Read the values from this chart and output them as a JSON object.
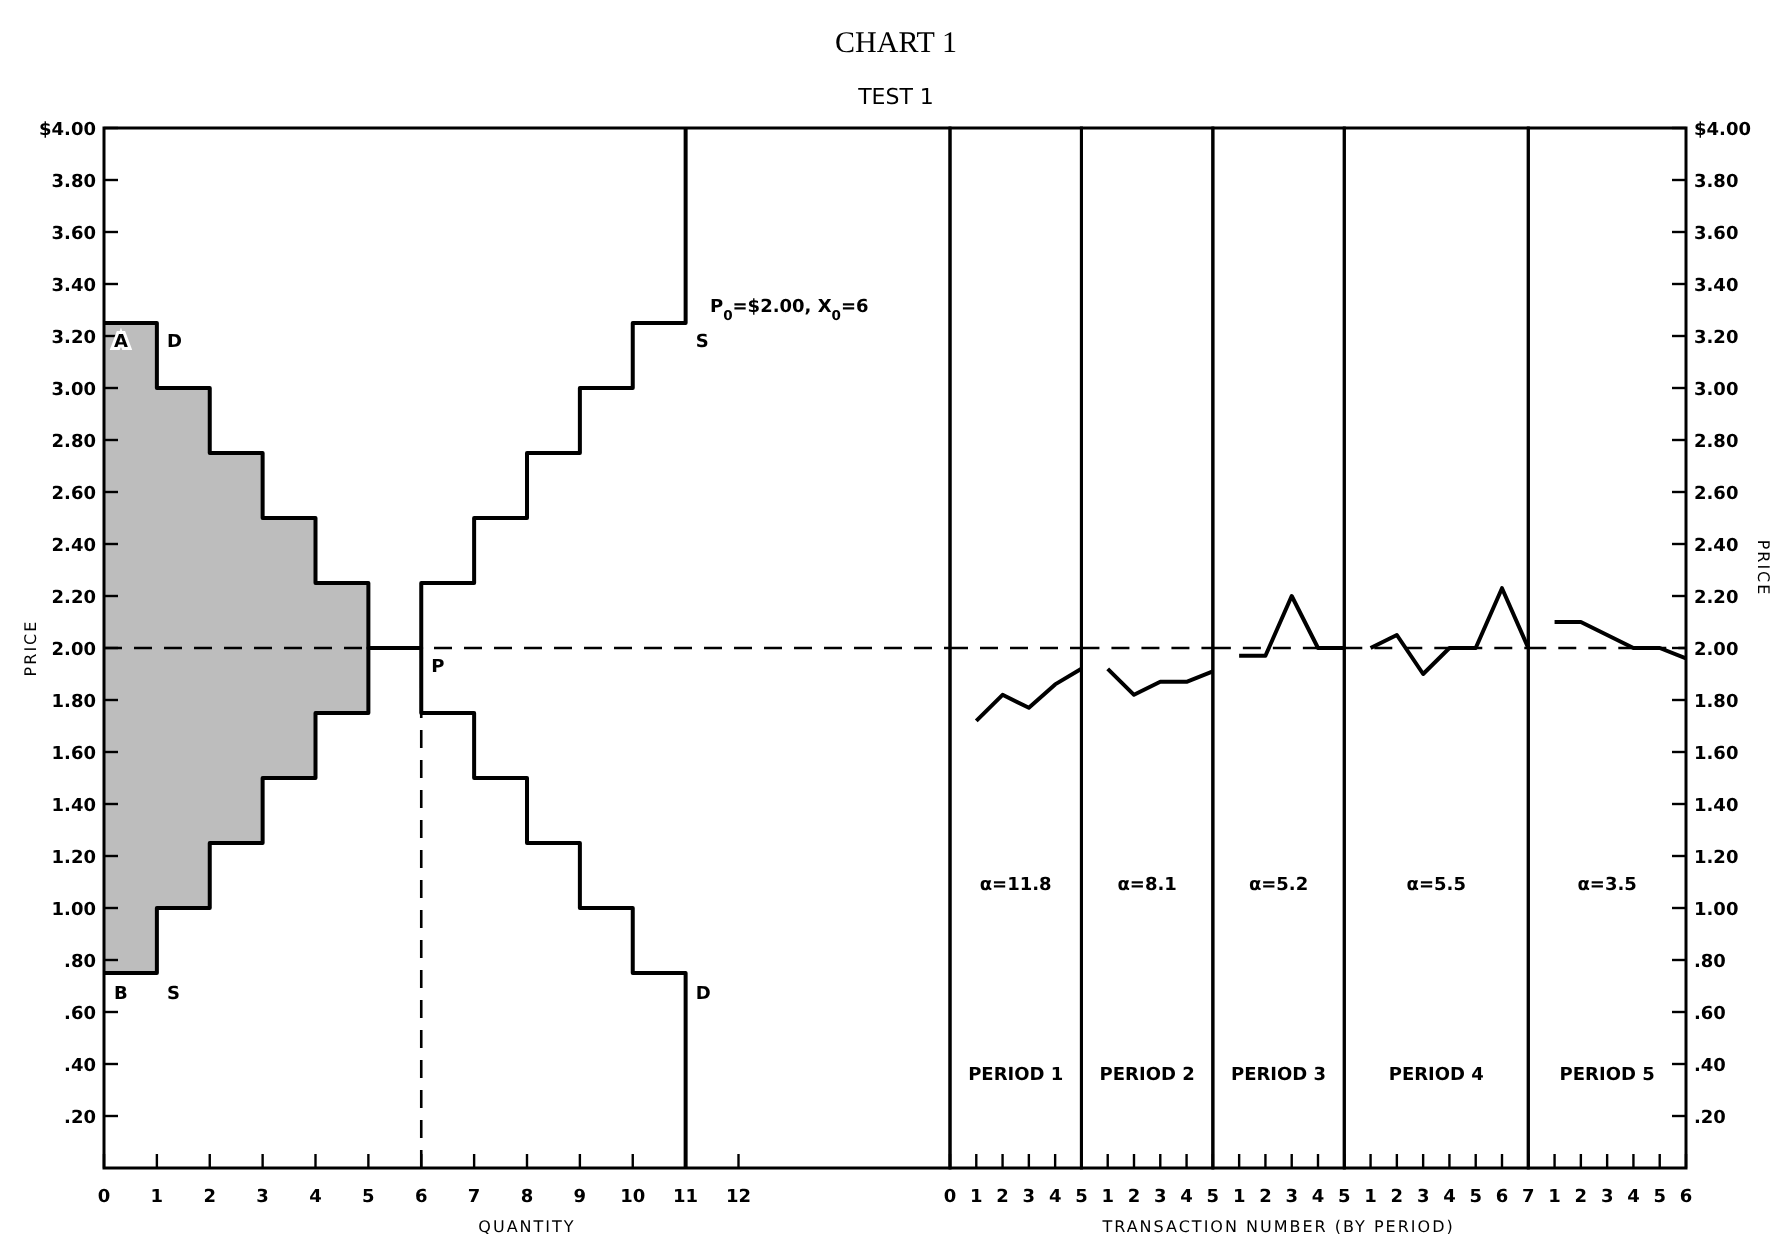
{
  "chart_data": [
    {
      "type": "step",
      "title": "CHART 1",
      "subtitle": "TEST 1",
      "xlabel": "QUANTITY",
      "ylabel": "PRICE",
      "xlim": [
        0,
        16
      ],
      "ylim": [
        0,
        4
      ],
      "xticks": [
        0,
        1,
        2,
        3,
        4,
        5,
        6,
        7,
        8,
        9,
        10,
        11,
        12
      ],
      "yticks": [
        {
          "value": 0.2,
          "label": ".20"
        },
        {
          "value": 0.4,
          "label": ".40"
        },
        {
          "value": 0.6,
          "label": ".60"
        },
        {
          "value": 0.8,
          "label": ".80"
        },
        {
          "value": 1,
          "label": "1.00"
        },
        {
          "value": 1.2,
          "label": "1.20"
        },
        {
          "value": 1.4,
          "label": "1.40"
        },
        {
          "value": 1.6,
          "label": "1.60"
        },
        {
          "value": 1.8,
          "label": "1.80"
        },
        {
          "value": 2,
          "label": "2.00"
        },
        {
          "value": 2.2,
          "label": "2.20"
        },
        {
          "value": 2.4,
          "label": "2.40"
        },
        {
          "value": 2.6,
          "label": "2.60"
        },
        {
          "value": 2.8,
          "label": "2.80"
        },
        {
          "value": 3,
          "label": "3.00"
        },
        {
          "value": 3.2,
          "label": "3.20"
        },
        {
          "value": 3.4,
          "label": "3.40"
        },
        {
          "value": 3.6,
          "label": "3.60"
        },
        {
          "value": 3.8,
          "label": "3.80"
        },
        {
          "value": 4,
          "label": "$4.00"
        }
      ],
      "series": [
        {
          "type": "area",
          "color": "#bdbdbd",
          "x": [
            0,
            1,
            2,
            3,
            4,
            5
          ],
          "values": [
            3.25,
            3.0,
            2.75,
            2.5,
            2.25,
            2.0
          ]
        },
        {
          "type": "step",
          "color": "#000000",
          "x": [
            0,
            1,
            2,
            3,
            4,
            5,
            6,
            7,
            8,
            9,
            10,
            11,
            11
          ],
          "values": [
            0.75,
            1.0,
            1.25,
            1.5,
            1.75,
            2.0,
            2.25,
            2.5,
            2.75,
            3.0,
            3.25,
            3.25,
            4.0
          ]
        },
        {
          "type": "step",
          "color": "#000000",
          "x": [
            0,
            1,
            2,
            3,
            4,
            5,
            6,
            7,
            8,
            9,
            10,
            11,
            11
          ],
          "values": [
            3.25,
            3.0,
            2.75,
            2.5,
            2.25,
            2.0,
            1.75,
            1.5,
            1.25,
            1.0,
            0.75,
            0.75,
            0
          ]
        },
        {
          "type": "line",
          "color": "#000000",
          "line_style": "dashed",
          "x": [
            6,
            6
          ],
          "values": [
            0,
            2.0
          ]
        }
      ],
      "ref_lines": [
        {
          "axis": "y",
          "value": 2.0,
          "color": "#000000",
          "line_style": "dashed"
        }
      ],
      "annotations": [
        {
          "text": "A",
          "x": 0,
          "y": 3.25
        },
        {
          "text": "B",
          "x": 0,
          "y": 0.75
        },
        {
          "text": "D",
          "x": 1,
          "y": 3.25
        },
        {
          "text": "S",
          "x": 1,
          "y": 0.75
        },
        {
          "text": "S",
          "x": 11,
          "y": 3.25
        },
        {
          "text": "D",
          "x": 11,
          "y": 0.75
        },
        {
          "text": "P",
          "x": 6,
          "y": 2.0
        },
        "P$_{0}$=$2.00,  X$_{0}$=6"
      ]
    },
    {
      "type": "line",
      "ylim": [
        0,
        4
      ],
      "xlim": [
        0,
        5
      ],
      "xticks": [
        0,
        1,
        2,
        3,
        4,
        5
      ],
      "tick_labels": "x",
      "x": [
        1,
        2,
        3,
        4,
        5
      ],
      "series": [
        {
          "color": "#000000",
          "values": [
            1.72,
            1.82,
            1.77,
            1.86,
            1.92
          ]
        }
      ],
      "ref_lines": [
        {
          "axis": "y",
          "value": 2.0,
          "color": "#000000",
          "line_style": "dashed"
        }
      ],
      "annotations": [
        "PERIOD 1",
        "α=11.8"
      ]
    },
    {
      "type": "line",
      "ylim": [
        0,
        4
      ],
      "xlim": [
        0,
        5
      ],
      "xticks": [
        1,
        2,
        3,
        4,
        5
      ],
      "tick_labels": "x",
      "x": [
        1,
        2,
        3,
        4,
        5
      ],
      "series": [
        {
          "color": "#000000",
          "values": [
            1.92,
            1.82,
            1.87,
            1.87,
            1.91
          ]
        }
      ],
      "ref_lines": [
        {
          "axis": "y",
          "value": 2.0,
          "color": "#000000",
          "line_style": "dashed"
        }
      ],
      "annotations": [
        "PERIOD 2",
        "α=8.1"
      ]
    },
    {
      "type": "line",
      "xlabel": "TRANSACTION NUMBER (BY PERIOD)",
      "ylim": [
        0,
        4
      ],
      "xlim": [
        0,
        5
      ],
      "xticks": [
        1,
        2,
        3,
        4,
        5
      ],
      "tick_labels": "x",
      "x": [
        1,
        2,
        3,
        4,
        5
      ],
      "series": [
        {
          "color": "#000000",
          "values": [
            1.97,
            1.97,
            2.2,
            2.0,
            2.0
          ]
        }
      ],
      "ref_lines": [
        {
          "axis": "y",
          "value": 2.0,
          "color": "#000000",
          "line_style": "dashed"
        }
      ],
      "annotations": [
        "PERIOD 3",
        "α=5.2"
      ]
    },
    {
      "type": "line",
      "ylim": [
        0,
        4
      ],
      "xlim": [
        0,
        7
      ],
      "xticks": [
        1,
        2,
        3,
        4,
        5,
        6,
        7
      ],
      "tick_labels": "x",
      "x": [
        1,
        2,
        3,
        4,
        5,
        6,
        7
      ],
      "series": [
        {
          "color": "#000000",
          "values": [
            2.0,
            2.05,
            1.9,
            2.0,
            2.0,
            2.23,
            2.0
          ]
        }
      ],
      "ref_lines": [
        {
          "axis": "y",
          "value": 2.0,
          "color": "#000000",
          "line_style": "dashed"
        }
      ],
      "annotations": [
        "PERIOD 4",
        "α=5.5"
      ]
    },
    {
      "type": "line",
      "ylabel": "PRICE",
      "ylim": [
        0,
        4
      ],
      "xlim": [
        0,
        6
      ],
      "xticks": [
        1,
        2,
        3,
        4,
        5,
        6
      ],
      "yticks": [
        {
          "value": 0.2,
          "label": ".20"
        },
        {
          "value": 0.4,
          "label": ".40"
        },
        {
          "value": 0.6,
          "label": ".60"
        },
        {
          "value": 0.8,
          "label": ".80"
        },
        {
          "value": 1,
          "label": "1.00"
        },
        {
          "value": 1.2,
          "label": "1.20"
        },
        {
          "value": 1.4,
          "label": "1.40"
        },
        {
          "value": 1.6,
          "label": "1.60"
        },
        {
          "value": 1.8,
          "label": "1.80"
        },
        {
          "value": 2,
          "label": "2.00"
        },
        {
          "value": 2.2,
          "label": "2.20"
        },
        {
          "value": 2.4,
          "label": "2.40"
        },
        {
          "value": 2.6,
          "label": "2.60"
        },
        {
          "value": 2.8,
          "label": "2.80"
        },
        {
          "value": 3,
          "label": "3.00"
        },
        {
          "value": 3.2,
          "label": "3.20"
        },
        {
          "value": 3.4,
          "label": "3.40"
        },
        {
          "value": 3.6,
          "label": "3.60"
        },
        {
          "value": 3.8,
          "label": "3.80"
        },
        {
          "value": 4,
          "label": "$4.00"
        }
      ],
      "x": [
        1,
        2,
        3,
        4,
        5,
        6
      ],
      "series": [
        {
          "color": "#000000",
          "values": [
            2.1,
            2.1,
            2.05,
            2.0,
            2.0,
            1.96
          ]
        }
      ],
      "ref_lines": [
        {
          "axis": "y",
          "value": 2.0,
          "color": "#000000",
          "line_style": "dashed"
        }
      ],
      "annotations": [
        "PERIOD 5",
        "α=3.5"
      ]
    }
  ]
}
